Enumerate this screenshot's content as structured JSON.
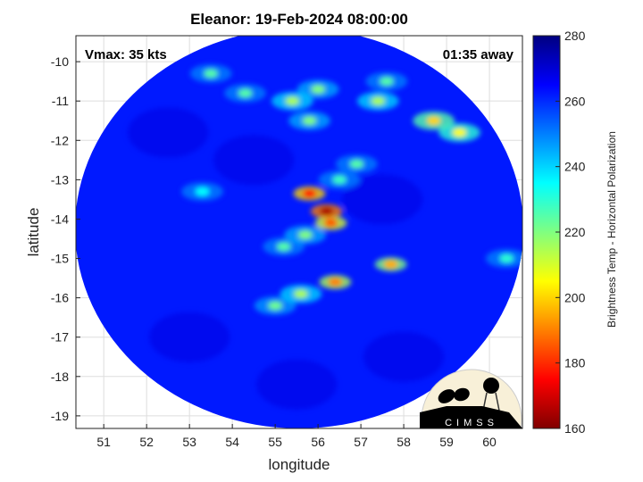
{
  "title": "Eleanor: 19-Feb-2024 08:00:00",
  "annotations": {
    "vmax": "Vmax: 35 kts",
    "time_away": "01:35 away"
  },
  "logo": {
    "text": "CIMSS"
  },
  "chart_data": {
    "type": "heatmap",
    "title": "Eleanor: 19-Feb-2024 08:00:00",
    "xlabel": "longitude",
    "ylabel": "latitude",
    "xlim": [
      50.35,
      60.77
    ],
    "ylim": [
      -19.32,
      -9.34
    ],
    "xticks": [
      "51",
      "52",
      "53",
      "54",
      "55",
      "56",
      "57",
      "58",
      "59",
      "60"
    ],
    "yticks": [
      "-10",
      "-11",
      "-12",
      "-13",
      "-14",
      "-15",
      "-16",
      "-17",
      "-18",
      "-19"
    ],
    "grid": true,
    "colorbar": {
      "label": "Brightness Temp - Horizontal Polarization",
      "range": [
        160,
        280
      ],
      "ticks": [
        "280",
        "260",
        "240",
        "220",
        "200",
        "180",
        "160"
      ],
      "colormap": "jet"
    },
    "background_temp": 262,
    "features": [
      {
        "lon": 56.2,
        "lat": -13.8,
        "temp": 165
      },
      {
        "lon": 55.8,
        "lat": -13.35,
        "temp": 175
      },
      {
        "lon": 56.3,
        "lat": -14.1,
        "temp": 185
      },
      {
        "lon": 55.7,
        "lat": -14.4,
        "temp": 220
      },
      {
        "lon": 55.2,
        "lat": -14.7,
        "temp": 225
      },
      {
        "lon": 56.5,
        "lat": -13.0,
        "temp": 228
      },
      {
        "lon": 56.4,
        "lat": -15.6,
        "temp": 190
      },
      {
        "lon": 57.7,
        "lat": -15.15,
        "temp": 195
      },
      {
        "lon": 55.6,
        "lat": -15.9,
        "temp": 215
      },
      {
        "lon": 55.0,
        "lat": -16.2,
        "temp": 222
      },
      {
        "lon": 58.7,
        "lat": -11.5,
        "temp": 200
      },
      {
        "lon": 59.3,
        "lat": -11.8,
        "temp": 205
      },
      {
        "lon": 55.4,
        "lat": -11.0,
        "temp": 215
      },
      {
        "lon": 55.8,
        "lat": -11.5,
        "temp": 220
      },
      {
        "lon": 54.3,
        "lat": -10.8,
        "temp": 225
      },
      {
        "lon": 53.5,
        "lat": -10.3,
        "temp": 225
      },
      {
        "lon": 56.0,
        "lat": -10.7,
        "temp": 220
      },
      {
        "lon": 57.4,
        "lat": -11.0,
        "temp": 215
      },
      {
        "lon": 57.6,
        "lat": -10.5,
        "temp": 225
      },
      {
        "lon": 56.9,
        "lat": -12.6,
        "temp": 225
      },
      {
        "lon": 53.3,
        "lat": -13.3,
        "temp": 235
      },
      {
        "lon": 60.4,
        "lat": -15.0,
        "temp": 230
      }
    ]
  }
}
